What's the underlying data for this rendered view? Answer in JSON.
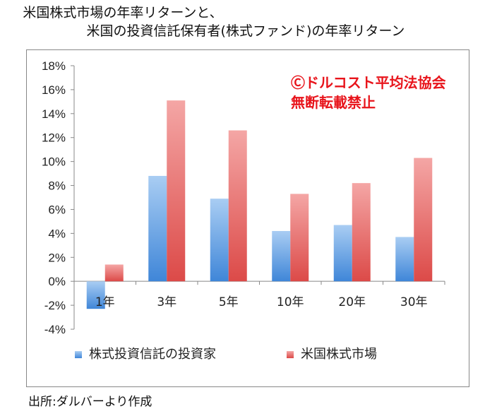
{
  "title_line1": "米国株式市場の年率リターンと、",
  "title_line2": "米国の投資信託保有者(株式ファンド)の年率リターン",
  "watermark_line1": "Ⓒドルコスト平均法協会",
  "watermark_line2": "無断転載禁止",
  "source": "出所:ダルバーより作成",
  "colors": {
    "series1": "#5b9bd5",
    "series2": "#e85f5c",
    "watermark": "#e8141b"
  },
  "chart_data": {
    "type": "bar",
    "title": "米国株式市場の年率リターンと、米国の投資信託保有者(株式ファンド)の年率リターン",
    "categories": [
      "1年",
      "3年",
      "5年",
      "10年",
      "20年",
      "30年"
    ],
    "series": [
      {
        "name": "株式投資信託の投資家",
        "values": [
          -2.3,
          8.8,
          6.9,
          4.2,
          4.7,
          3.7
        ]
      },
      {
        "name": "米国株式市場",
        "values": [
          1.4,
          15.1,
          12.6,
          7.3,
          8.2,
          10.3
        ]
      }
    ],
    "ylim": [
      -4,
      18
    ],
    "yticks": [
      "-4%",
      "-2%",
      "0%",
      "2%",
      "4%",
      "6%",
      "8%",
      "10%",
      "12%",
      "14%",
      "16%",
      "18%"
    ],
    "ytick_values": [
      -4,
      -2,
      0,
      2,
      4,
      6,
      8,
      10,
      12,
      14,
      16,
      18
    ],
    "grid": false,
    "legend_position": "bottom"
  }
}
